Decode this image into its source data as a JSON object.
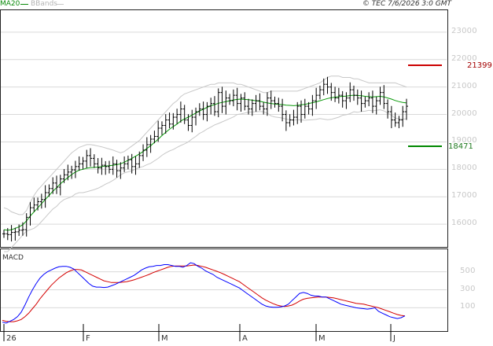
{
  "header": {
    "indicator_ma": "MA20",
    "indicator_bb": "BBands",
    "copyright": "© TEC 7/6/2026 3:0 GMT"
  },
  "colors": {
    "candle": "#000000",
    "ma": "#0a9a0a",
    "bbands": "#c8c8c8",
    "resistance": "#cc0000",
    "support": "#008800",
    "macd_line": "#0000ff",
    "signal_line": "#d40000",
    "grid": "#d9d9d9"
  },
  "price_axis": {
    "labels": [
      {
        "text": "23000"
      },
      {
        "text": "22000"
      },
      {
        "text": "21000"
      },
      {
        "text": "20000"
      },
      {
        "text": "19000"
      },
      {
        "text": "18000"
      },
      {
        "text": "17000"
      },
      {
        "text": "16000"
      }
    ]
  },
  "macd_axis": {
    "labels": [
      {
        "text": "500"
      },
      {
        "text": "300"
      },
      {
        "text": "100"
      }
    ]
  },
  "time_axis": {
    "labels": [
      "26",
      "F",
      "M",
      "A",
      "M",
      "J"
    ]
  },
  "levels": {
    "resistance": {
      "label": "21399",
      "value": 21399
    },
    "support": {
      "label": "18471",
      "value": 18471
    }
  },
  "macd": {
    "title": "MACD"
  },
  "chart_data": {
    "type": "line",
    "title": "",
    "price_range": [
      15200,
      23800
    ],
    "price_series_close": [
      15650,
      15620,
      15700,
      15720,
      15780,
      15800,
      16250,
      16600,
      16700,
      16820,
      16900,
      17150,
      17300,
      17500,
      17350,
      17650,
      17800,
      17900,
      17980,
      18100,
      18200,
      18300,
      18500,
      18400,
      18200,
      18050,
      18150,
      18100,
      18000,
      18200,
      17950,
      18050,
      18200,
      18350,
      18100,
      18200,
      18500,
      18700,
      18900,
      19100,
      19200,
      19500,
      19600,
      19800,
      19650,
      19900,
      20000,
      20200,
      19800,
      19600,
      19900,
      20100,
      20200,
      20000,
      20300,
      20400,
      20100,
      20800,
      20300,
      20600,
      20500,
      20700,
      20400,
      20600,
      20300,
      20200,
      20400,
      20500,
      20300,
      20200,
      20600,
      20500,
      20400,
      20300,
      20000,
      19700,
      19800,
      19900,
      20300,
      20000,
      20300,
      20200,
      20500,
      20700,
      20900,
      21100,
      21000,
      20800,
      20600,
      20700,
      20500,
      20600,
      20900,
      20700,
      20600,
      20400,
      20500,
      20600,
      20300,
      20500,
      20800,
      20400,
      20100,
      19800,
      19700,
      19800,
      20100,
      20300
    ],
    "ma20": [
      15800,
      15780,
      15800,
      15850,
      15900,
      15980,
      16120,
      16300,
      16450,
      16600,
      16750,
      16900,
      17050,
      17200,
      17330,
      17470,
      17590,
      17700,
      17810,
      17900,
      17970,
      18000,
      18040,
      18060,
      18070,
      18080,
      18100,
      18120,
      18130,
      18150,
      18170,
      18200,
      18260,
      18330,
      18400,
      18480,
      18560,
      18650,
      18760,
      18860,
      18980,
      19100,
      19230,
      19350,
      19460,
      19560,
      19650,
      19760,
      19840,
      19900,
      19980,
      20050,
      20130,
      20190,
      20260,
      20320,
      20360,
      20410,
      20440,
      20470,
      20500,
      20530,
      20550,
      20560,
      20550,
      20540,
      20520,
      20500,
      20480,
      20450,
      20420,
      20400,
      20380,
      20370,
      20360,
      20340,
      20330,
      20320,
      20330,
      20350,
      20370,
      20400,
      20430,
      20460,
      20500,
      20540,
      20580,
      20610,
      20630,
      20650,
      20660,
      20670,
      20690,
      20700,
      20690,
      20680,
      20660,
      20650,
      20640,
      20650,
      20660,
      20640,
      20600,
      20560,
      20510,
      20470,
      20440,
      20420
    ],
    "bb_upper": [
      16600,
      16550,
      16450,
      16400,
      16350,
      16350,
      16500,
      16800,
      17050,
      17250,
      17400,
      17550,
      17700,
      17850,
      18000,
      18150,
      18300,
      18450,
      18600,
      18700,
      18800,
      18850,
      18900,
      18900,
      18880,
      18850,
      18820,
      18780,
      18740,
      18700,
      18650,
      18600,
      18650,
      18750,
      18850,
      18950,
      19050,
      19200,
      19350,
      19500,
      19650,
      19800,
      19950,
      20100,
      20250,
      20400,
      20500,
      20650,
      20750,
      20800,
      20850,
      20900,
      20950,
      21000,
      21050,
      21100,
      21100,
      21150,
      21150,
      21150,
      21150,
      21150,
      21100,
      21100,
      21050,
      21000,
      20950,
      20900,
      20850,
      20800,
      20800,
      20850,
      20850,
      20850,
      20850,
      20850,
      20850,
      20850,
      20850,
      20900,
      20950,
      21000,
      21050,
      21100,
      21150,
      21250,
      21350,
      21400,
      21400,
      21400,
      21350,
      21350,
      21350,
      21300,
      21300,
      21250,
      21200,
      21150,
      21150,
      21150,
      21150,
      21150,
      21150,
      21150,
      21150,
      21100,
      21050,
      21000
    ],
    "bb_lower": [
      15000,
      15000,
      15150,
      15300,
      15450,
      15600,
      15750,
      15800,
      15850,
      15950,
      16100,
      16250,
      16400,
      16550,
      16650,
      16800,
      16900,
      16950,
      17000,
      17100,
      17150,
      17150,
      17180,
      17220,
      17260,
      17310,
      17380,
      17460,
      17520,
      17600,
      17690,
      17800,
      17870,
      17910,
      17950,
      18010,
      18070,
      18100,
      18170,
      18220,
      18310,
      18400,
      18510,
      18600,
      18670,
      18720,
      18800,
      18870,
      18930,
      19000,
      19110,
      19200,
      19310,
      19380,
      19470,
      19540,
      19620,
      19670,
      19730,
      19790,
      19850,
      19910,
      20000,
      20020,
      20050,
      20080,
      20090,
      20100,
      20110,
      20100,
      20040,
      19950,
      19910,
      19890,
      19870,
      19830,
      19810,
      19790,
      19810,
      19800,
      19790,
      19800,
      19810,
      19820,
      19850,
      19830,
      19810,
      19820,
      19860,
      19900,
      19970,
      19990,
      20030,
      20100,
      20080,
      20110,
      20120,
      20150,
      20130,
      20150,
      20170,
      20130,
      20050,
      19970,
      19870,
      19840,
      19830,
      19840
    ],
    "macd_range": [
      -150,
      750
    ],
    "macd_line": [
      -60,
      -70,
      -50,
      -30,
      0,
      50,
      130,
      220,
      300,
      370,
      430,
      470,
      500,
      520,
      540,
      555,
      560,
      560,
      550,
      530,
      490,
      450,
      410,
      370,
      340,
      330,
      330,
      325,
      330,
      345,
      360,
      380,
      400,
      420,
      440,
      460,
      490,
      520,
      540,
      555,
      560,
      570,
      570,
      580,
      580,
      570,
      560,
      560,
      550,
      570,
      600,
      590,
      560,
      540,
      510,
      490,
      470,
      440,
      420,
      400,
      380,
      360,
      340,
      320,
      290,
      260,
      230,
      200,
      170,
      140,
      120,
      110,
      105,
      105,
      110,
      120,
      140,
      180,
      220,
      260,
      270,
      260,
      240,
      230,
      230,
      220,
      220,
      200,
      180,
      160,
      140,
      130,
      120,
      110,
      100,
      95,
      90,
      85,
      90,
      100,
      60,
      40,
      20,
      0,
      -10,
      -20,
      -10,
      10
    ],
    "signal_line": [
      -40,
      -50,
      -55,
      -55,
      -45,
      -30,
      0,
      40,
      90,
      140,
      200,
      250,
      300,
      350,
      390,
      430,
      460,
      490,
      510,
      525,
      525,
      520,
      500,
      480,
      460,
      440,
      420,
      400,
      390,
      380,
      380,
      380,
      385,
      390,
      400,
      410,
      425,
      440,
      455,
      470,
      490,
      505,
      520,
      535,
      550,
      560,
      565,
      565,
      565,
      565,
      570,
      575,
      570,
      560,
      550,
      535,
      520,
      505,
      490,
      470,
      450,
      430,
      410,
      390,
      360,
      330,
      300,
      270,
      240,
      210,
      185,
      165,
      145,
      130,
      120,
      115,
      120,
      130,
      150,
      175,
      195,
      205,
      210,
      215,
      220,
      220,
      220,
      215,
      210,
      200,
      190,
      180,
      170,
      160,
      150,
      145,
      140,
      130,
      120,
      110,
      100,
      85,
      70,
      55,
      40,
      25,
      15,
      10
    ]
  }
}
